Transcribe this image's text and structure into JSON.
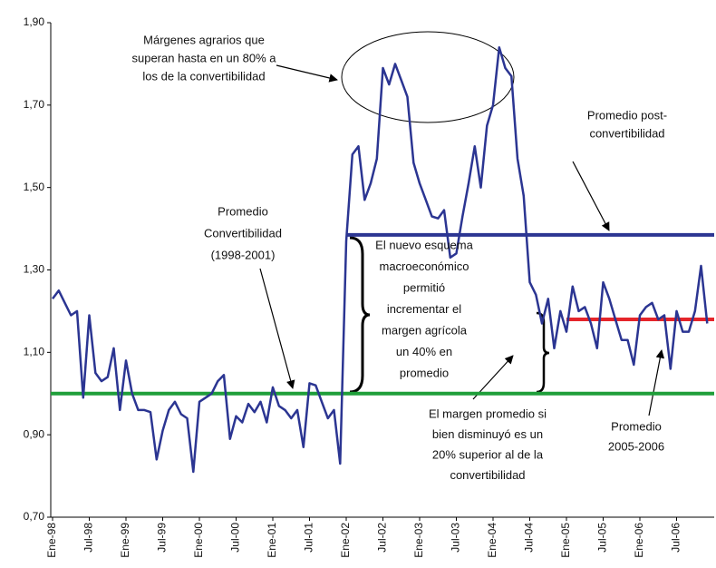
{
  "chart_data": {
    "type": "line",
    "categories": [
      "Ene-98",
      null,
      null,
      null,
      null,
      null,
      "Jul-98",
      null,
      null,
      null,
      null,
      null,
      "Ene-99",
      null,
      null,
      null,
      null,
      null,
      "Jul-99",
      null,
      null,
      null,
      null,
      null,
      "Ene-00",
      null,
      null,
      null,
      null,
      null,
      "Jul-00",
      null,
      null,
      null,
      null,
      null,
      "Ene-01",
      null,
      null,
      null,
      null,
      null,
      "Jul-01",
      null,
      null,
      null,
      null,
      null,
      "Ene-02",
      null,
      null,
      null,
      null,
      null,
      "Jul-02",
      null,
      null,
      null,
      null,
      null,
      "Ene-03",
      null,
      null,
      null,
      null,
      null,
      "Jul-03",
      null,
      null,
      null,
      null,
      null,
      "Ene-04",
      null,
      null,
      null,
      null,
      null,
      "Jul-04",
      null,
      null,
      null,
      null,
      null,
      "Ene-05",
      null,
      null,
      null,
      null,
      null,
      "Jul-05",
      null,
      null,
      null,
      null,
      null,
      "Ene-06",
      null,
      null,
      null,
      null,
      null,
      "Jul-06",
      null,
      null,
      null,
      null,
      null
    ],
    "series": [
      {
        "color": "#2b3592",
        "values": [
          1.23,
          1.25,
          1.22,
          1.19,
          1.2,
          0.99,
          1.19,
          1.05,
          1.03,
          1.04,
          1.11,
          0.96,
          1.08,
          1.0,
          0.96,
          0.96,
          0.955,
          0.84,
          0.91,
          0.96,
          0.98,
          0.95,
          0.94,
          0.81,
          0.98,
          0.99,
          1.0,
          1.03,
          1.045,
          0.89,
          0.945,
          0.93,
          0.975,
          0.955,
          0.98,
          0.93,
          1.015,
          0.97,
          0.96,
          0.94,
          0.96,
          0.87,
          1.025,
          1.02,
          0.98,
          0.94,
          0.96,
          0.83,
          1.37,
          1.58,
          1.6,
          1.47,
          1.51,
          1.57,
          1.79,
          1.75,
          1.8,
          1.76,
          1.72,
          1.56,
          1.51,
          1.47,
          1.43,
          1.425,
          1.445,
          1.33,
          1.34,
          1.43,
          1.51,
          1.6,
          1.5,
          1.65,
          1.7,
          1.84,
          1.79,
          1.77,
          1.57,
          1.48,
          1.27,
          1.24,
          1.17,
          1.23,
          1.11,
          1.2,
          1.15,
          1.26,
          1.2,
          1.21,
          1.17,
          1.11,
          1.27,
          1.23,
          1.18,
          1.13,
          1.13,
          1.07,
          1.19,
          1.21,
          1.22,
          1.18,
          1.19,
          1.06,
          1.2,
          1.15,
          1.15,
          1.2,
          1.31,
          1.17
        ]
      }
    ],
    "reference_lines": [
      {
        "value": 1.0,
        "color": "#1f9e3a",
        "from": "Ene-98"
      },
      {
        "value": 1.385,
        "color": "#2b3592",
        "from": "Ene-02"
      },
      {
        "value": 1.18,
        "color": "#e5252a",
        "from": "Ene-05"
      }
    ],
    "ylim": [
      0.7,
      1.9
    ],
    "yticks": [
      {
        "value": 0.7,
        "label": "0,70"
      },
      {
        "value": 0.9,
        "label": "0,90"
      },
      {
        "value": 1.1,
        "label": "1,10"
      },
      {
        "value": 1.3,
        "label": "1,30"
      },
      {
        "value": 1.5,
        "label": "1,50"
      },
      {
        "value": 1.7,
        "label": "1,70"
      },
      {
        "value": 1.9,
        "label": "1,90"
      }
    ],
    "grid": false,
    "annotations": [
      {
        "lines": [
          "Márgenes agrarios que",
          "superan hasta en un 80% a",
          "los de la convertibilidad"
        ]
      },
      {
        "lines": [
          "Promedio post-",
          "convertibilidad"
        ]
      },
      {
        "lines": [
          "El nuevo esquema",
          "macroeconómico",
          "permitió",
          "incrementar el",
          "margen agrícola",
          "un 40% en",
          "promedio"
        ]
      },
      {
        "lines": [
          "Promedio",
          "Convertibilidad",
          "(1998-2001)"
        ]
      },
      {
        "lines": [
          "El margen promedio si",
          "bien disminuyó es un",
          "20% superior al de la",
          "convertibilidad"
        ]
      },
      {
        "lines": [
          "Promedio",
          "2005-2006"
        ]
      }
    ]
  }
}
